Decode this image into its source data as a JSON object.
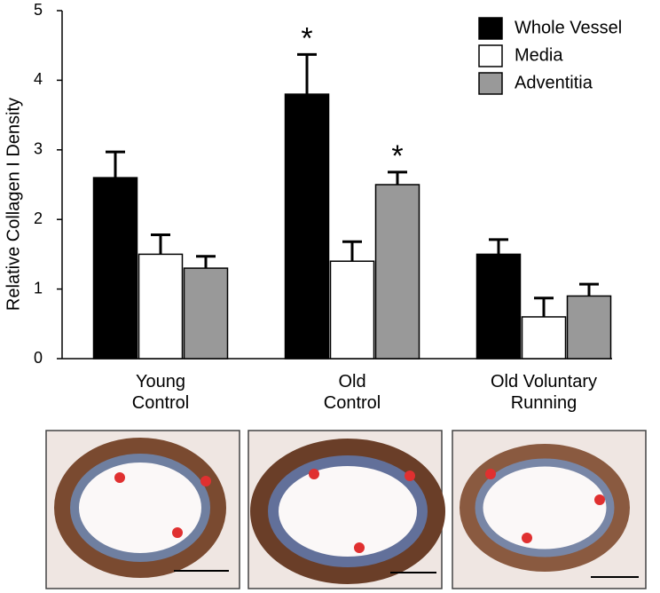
{
  "chart_data": {
    "type": "bar",
    "y_label": "Relative Collagen I Density",
    "categories": [
      "Young\nControl",
      "Old\nControl",
      "Old Voluntary\nRunning"
    ],
    "series": [
      {
        "name": "Whole Vessel",
        "color": "#000000",
        "values": [
          2.6,
          3.8,
          1.5
        ],
        "errors": [
          0.37,
          0.57,
          0.21
        ]
      },
      {
        "name": "Media",
        "color": "#ffffff",
        "values": [
          1.5,
          1.4,
          0.6
        ],
        "errors": [
          0.28,
          0.28,
          0.27
        ]
      },
      {
        "name": "Adventitia",
        "color": "#999999",
        "values": [
          1.3,
          2.5,
          0.9
        ],
        "errors": [
          0.17,
          0.18,
          0.17
        ]
      }
    ],
    "ylim": [
      0,
      5
    ],
    "yticks": [
      0,
      1,
      2,
      3,
      4,
      5
    ],
    "annotations": [
      {
        "text": "*",
        "series": 0,
        "category": 1
      },
      {
        "text": "*",
        "series": 2,
        "category": 1
      }
    ],
    "legend": "top-right"
  }
}
